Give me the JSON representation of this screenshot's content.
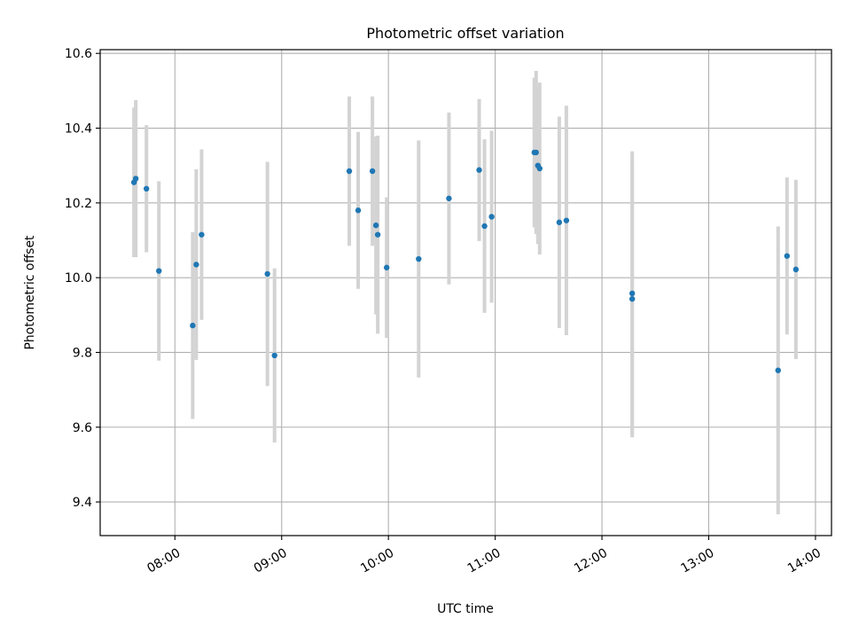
{
  "chart_data": {
    "type": "scatter",
    "title": "Photometric offset variation",
    "xlabel": "UTC time",
    "ylabel": "Photometric offset",
    "grid": true,
    "xlim": [
      "07:18",
      "14:09"
    ],
    "ylim": [
      9.31,
      10.61
    ],
    "x_ticks": [
      "08:00",
      "09:00",
      "10:00",
      "11:00",
      "12:00",
      "13:00",
      "14:00"
    ],
    "y_ticks": [
      "9.4",
      "9.6",
      "9.8",
      "10.0",
      "10.2",
      "10.4",
      "10.6"
    ],
    "colors": {
      "point": "#1f77b4",
      "errorbar": "#d3d3d3",
      "grid": "#b0b0b0"
    },
    "points": [
      {
        "x": "07:37",
        "y": 10.255,
        "err": 0.2
      },
      {
        "x": "07:38",
        "y": 10.265,
        "err": 0.21
      },
      {
        "x": "07:44",
        "y": 10.238,
        "err": 0.17
      },
      {
        "x": "07:51",
        "y": 10.018,
        "err": 0.24
      },
      {
        "x": "08:10",
        "y": 9.872,
        "err": 0.25
      },
      {
        "x": "08:12",
        "y": 10.035,
        "err": 0.255
      },
      {
        "x": "08:15",
        "y": 10.115,
        "err": 0.228
      },
      {
        "x": "08:52",
        "y": 10.01,
        "err": 0.3
      },
      {
        "x": "08:56",
        "y": 9.792,
        "err": 0.233
      },
      {
        "x": "09:38",
        "y": 10.285,
        "err": 0.2
      },
      {
        "x": "09:43",
        "y": 10.18,
        "err": 0.21
      },
      {
        "x": "09:51",
        "y": 10.285,
        "err": 0.2
      },
      {
        "x": "09:53",
        "y": 10.14,
        "err": 0.238
      },
      {
        "x": "09:54",
        "y": 10.115,
        "err": 0.265
      },
      {
        "x": "09:59",
        "y": 10.027,
        "err": 0.188
      },
      {
        "x": "10:17",
        "y": 10.05,
        "err": 0.317
      },
      {
        "x": "10:34",
        "y": 10.212,
        "err": 0.23
      },
      {
        "x": "10:51",
        "y": 10.288,
        "err": 0.19
      },
      {
        "x": "10:54",
        "y": 10.138,
        "err": 0.232
      },
      {
        "x": "10:58",
        "y": 10.163,
        "err": 0.23
      },
      {
        "x": "11:22",
        "y": 10.335,
        "err": 0.2
      },
      {
        "x": "11:23",
        "y": 10.335,
        "err": 0.218
      },
      {
        "x": "11:24",
        "y": 10.3,
        "err": 0.21
      },
      {
        "x": "11:25",
        "y": 10.292,
        "err": 0.23
      },
      {
        "x": "11:36",
        "y": 10.148,
        "err": 0.283
      },
      {
        "x": "11:40",
        "y": 10.153,
        "err": 0.307
      },
      {
        "x": "12:17",
        "y": 9.958,
        "err": 0.38
      },
      {
        "x": "12:17",
        "y": 9.943,
        "err": 0.37
      },
      {
        "x": "13:39",
        "y": 9.752,
        "err": 0.385
      },
      {
        "x": "13:44",
        "y": 10.058,
        "err": 0.21
      },
      {
        "x": "13:49",
        "y": 10.022,
        "err": 0.24
      }
    ]
  }
}
